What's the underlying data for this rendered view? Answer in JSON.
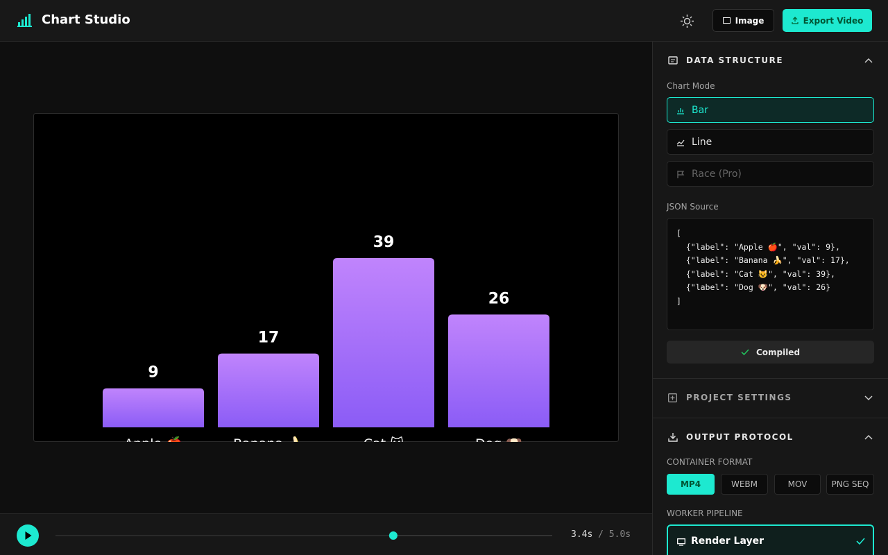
{
  "header": {
    "title": "Chart Studio",
    "buttons": [
      "Image",
      "Export Video"
    ]
  },
  "chart_data": {
    "type": "bar",
    "categories": [
      "Apple 🍎",
      "Banana 🍌",
      "Cat 😺",
      "Dog 🐶"
    ],
    "values": [
      9,
      17,
      39,
      26
    ],
    "gradient": [
      "#c084fc",
      "#8b5cf6"
    ]
  },
  "playback": {
    "current": {
      "value": 3.4,
      "label": "3.4s"
    },
    "separator": "/",
    "total": {
      "value": 5.0,
      "label": "5.0s"
    }
  },
  "panel": {
    "data_structure": {
      "title": "DATA STRUCTURE",
      "chart_mode_label": "Chart Mode",
      "modes": [
        "Bar",
        "Line",
        "Race (Pro)"
      ],
      "selected_mode": 0,
      "json_label": "JSON Source",
      "json_lines": [
        "[",
        "  {\"label\": \"Apple 🍎\", \"val\": 9},",
        "  {\"label\": \"Banana 🍌\", \"val\": 17},",
        "  {\"label\": \"Cat 😺\", \"val\": 39},",
        "  {\"label\": \"Dog 🐶\", \"val\": 26}",
        "]"
      ],
      "status": "Compiled"
    },
    "project_settings": {
      "title": "PROJECT SETTINGS"
    },
    "output_protocol": {
      "title": "OUTPUT PROTOCOL",
      "container_label": "CONTAINER FORMAT",
      "formats": [
        "MP4",
        "WEBM",
        "MOV",
        "PNG SEQ"
      ],
      "selected_format": 0,
      "pipeline_label": "WORKER PIPELINE",
      "pipeline_option": "Render Layer"
    }
  }
}
